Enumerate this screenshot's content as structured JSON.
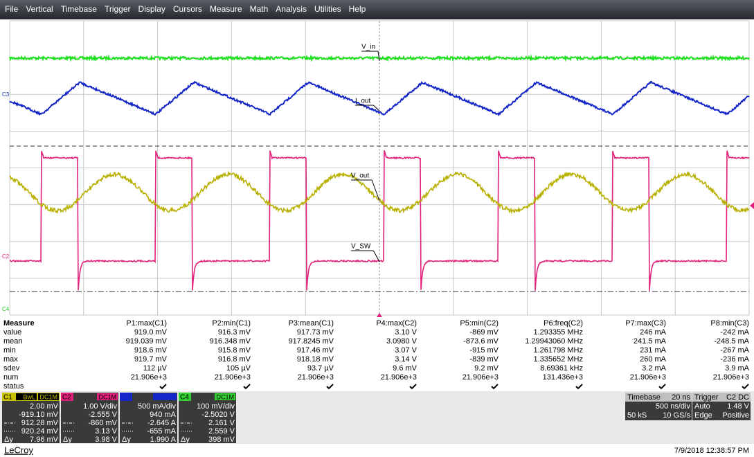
{
  "menu": [
    "File",
    "Vertical",
    "Timebase",
    "Trigger",
    "Display",
    "Cursors",
    "Measure",
    "Math",
    "Analysis",
    "Utilities",
    "Help"
  ],
  "trace_labels": {
    "v_in": "V_in",
    "i_out": "I_out",
    "v_out": "V_out",
    "v_sw": "V_SW"
  },
  "channel_markers": {
    "c3": "C3",
    "c2": "C2",
    "c4": "C4"
  },
  "measure": {
    "header": [
      "Measure",
      "P1:max(C1)",
      "P2:min(C1)",
      "P3:mean(C1)",
      "P4:max(C2)",
      "P5:min(C2)",
      "P6:freq(C2)",
      "P7:max(C3)",
      "P8:min(C3)"
    ],
    "rows": [
      {
        "label": "value",
        "cells": [
          "919.0 mV",
          "916.3 mV",
          "917.73 mV",
          "3.10 V",
          "-869 mV",
          "1.293355 MHz",
          "246 mA",
          "-242 mA"
        ]
      },
      {
        "label": "mean",
        "cells": [
          "919.039 mV",
          "916.348 mV",
          "917.8245 mV",
          "3.0980 V",
          "-873.6 mV",
          "1.29943060 MHz",
          "241.5 mA",
          "-248.5 mA"
        ]
      },
      {
        "label": "min",
        "cells": [
          "918.6 mV",
          "915.8 mV",
          "917.46 mV",
          "3.07 V",
          "-915 mV",
          "1.261798 MHz",
          "231 mA",
          "-267 mA"
        ]
      },
      {
        "label": "max",
        "cells": [
          "919.7 mV",
          "916.8 mV",
          "918.18 mV",
          "3.14 V",
          "-839 mV",
          "1.335652 MHz",
          "260 mA",
          "-236 mA"
        ]
      },
      {
        "label": "sdev",
        "cells": [
          "112 µV",
          "105 µV",
          "93.7 µV",
          "9.6 mV",
          "9.2 mV",
          "8.69361 kHz",
          "3.2 mA",
          "3.9 mA"
        ]
      },
      {
        "label": "num",
        "cells": [
          "21.906e+3",
          "21.906e+3",
          "21.906e+3",
          "21.906e+3",
          "21.906e+3",
          "131.436e+3",
          "21.906e+3",
          "21.906e+3"
        ]
      },
      {
        "label": "status"
      }
    ]
  },
  "channels": [
    {
      "name": "C1",
      "tags": [
        "BwL",
        "DC1M"
      ],
      "lines": [
        "2.00 mV",
        "-919.10 mV",
        "912.28 mV",
        "920.24 mV"
      ],
      "delta_label": "Δy",
      "delta": "7.96 mV"
    },
    {
      "name": "C2",
      "tags": [
        "DC1M"
      ],
      "lines": [
        "1.00 V/div",
        "-2.555 V",
        "-860 mV",
        "3.13 V"
      ],
      "delta_label": "Δy",
      "delta": "3.98 V"
    },
    {
      "lines": [
        "500 mA/div",
        "940 mA",
        "-2.645 A",
        "-655 mA"
      ],
      "delta_label": "Δy",
      "delta": "1.990 A"
    },
    {
      "name": "C4",
      "tags": [
        "DC1M"
      ],
      "lines": [
        "100 mV/div",
        "-2.5020 V",
        "2.161 V",
        "2.559 V"
      ],
      "delta_label": "Δy",
      "delta": "398 mV"
    }
  ],
  "timebase": {
    "label": "Timebase",
    "value": "20 ns",
    "rate": "500 ns/div",
    "samples": "50 kS",
    "sample_rate": "10 GS/s"
  },
  "trigger": {
    "label": "Trigger",
    "source": "C2 DC",
    "mode": "Auto",
    "level": "1.48 V",
    "type": "Edge",
    "slope": "Positive"
  },
  "footer": {
    "brand": "LeCroy",
    "timestamp": "7/9/2018 12:38:57 PM"
  }
}
